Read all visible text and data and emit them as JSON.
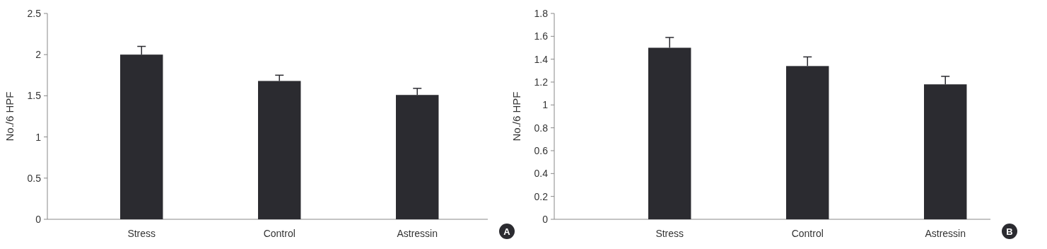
{
  "chart_data": [
    {
      "type": "bar",
      "ylabel": "No./6 HPF",
      "categories": [
        "Stress",
        "Control",
        "Astressin"
      ],
      "values": [
        2.0,
        1.68,
        1.51
      ],
      "errors": [
        [
          2.0,
          2.1
        ],
        [
          1.68,
          1.75
        ],
        [
          1.51,
          1.59
        ]
      ],
      "color": "#2b2b30",
      "ylim": [
        0,
        2.5
      ],
      "yticks": [
        0,
        0.5,
        1,
        1.5,
        2,
        2.5
      ],
      "grid": false,
      "annotations": [
        "A"
      ]
    },
    {
      "type": "bar",
      "ylabel": "No./6 HPF",
      "categories": [
        "Stress",
        "Control",
        "Astressin"
      ],
      "values": [
        1.5,
        1.34,
        1.18
      ],
      "errors": [
        [
          1.5,
          1.59
        ],
        [
          1.34,
          1.42
        ],
        [
          1.18,
          1.25
        ]
      ],
      "color": "#2b2b30",
      "ylim": [
        0,
        1.8
      ],
      "yticks": [
        0,
        0.2,
        0.4,
        0.6,
        0.8,
        1,
        1.2,
        1.4,
        1.6,
        1.8
      ],
      "grid": false,
      "annotations": [
        "B"
      ]
    }
  ]
}
